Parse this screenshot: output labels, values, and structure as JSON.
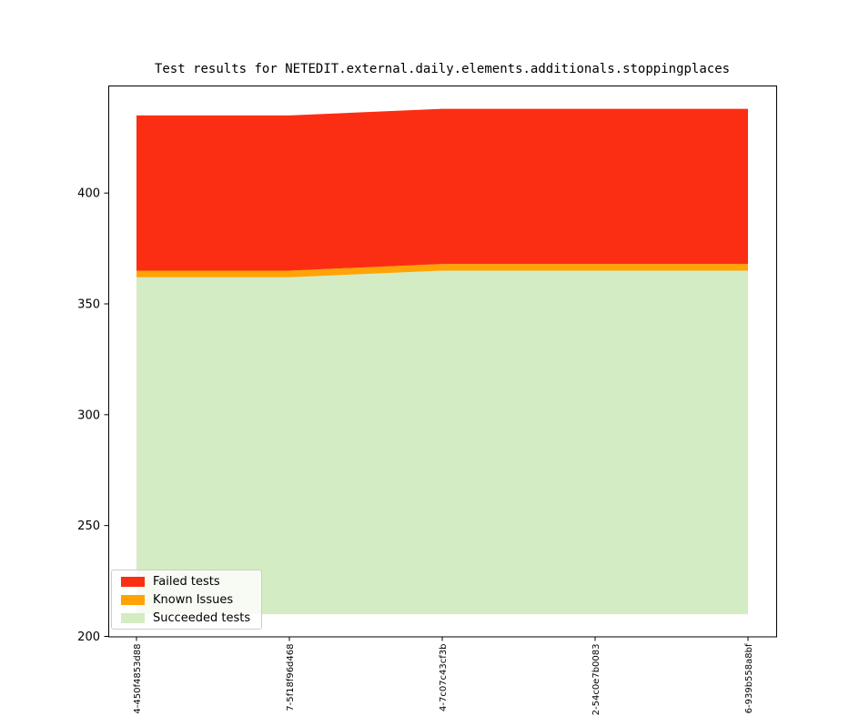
{
  "title": "Test results for NETEDIT.external.daily.elements.additionals.stoppingplaces",
  "legend": {
    "items": [
      {
        "label": "Failed tests",
        "color": "#fb2e13"
      },
      {
        "label": "Known Issues",
        "color": "#ffa306"
      },
      {
        "label": "Succeeded tests",
        "color": "#d4ecc3"
      }
    ]
  },
  "axes": {
    "yticks": [
      "400",
      "350",
      "300",
      "250",
      "200"
    ],
    "xticklabels": [
      "4-450f4853d88",
      "7-5f18f96d468",
      "4-7c07c43cf3b",
      "2-54c0e7b0083",
      "6-939b558a8bf"
    ]
  },
  "chart_data": {
    "type": "area",
    "stacked": true,
    "title": "Test results for NETEDIT.external.daily.elements.additionals.stoppingplaces",
    "categories": [
      "4-450f4853d88",
      "7-5f18f96d468",
      "4-7c07c43cf3b",
      "2-54c0e7b0083",
      "6-939b558a8bf"
    ],
    "series": [
      {
        "name": "Succeeded tests",
        "color": "#d4ecc3",
        "values": [
          362,
          362,
          365,
          365,
          365
        ]
      },
      {
        "name": "Known Issues",
        "color": "#ffa306",
        "values": [
          3,
          3,
          3,
          3,
          3
        ]
      },
      {
        "name": "Failed tests",
        "color": "#fb2e13",
        "values": [
          70,
          70,
          70,
          70,
          70
        ]
      }
    ],
    "stack_tops": {
      "succeeded": [
        362,
        362,
        365,
        365,
        365
      ],
      "known_issues": [
        365,
        365,
        368,
        368,
        368
      ],
      "failed_total": [
        435,
        435,
        438,
        438,
        438
      ]
    },
    "baseline": 210,
    "ylim": [
      200,
      448.5
    ],
    "yticks": [
      200,
      250,
      300,
      350,
      400
    ],
    "xlabel": "",
    "ylabel": "",
    "grid": false,
    "legend_position": "lower left",
    "x_tick_rotation": 90
  }
}
